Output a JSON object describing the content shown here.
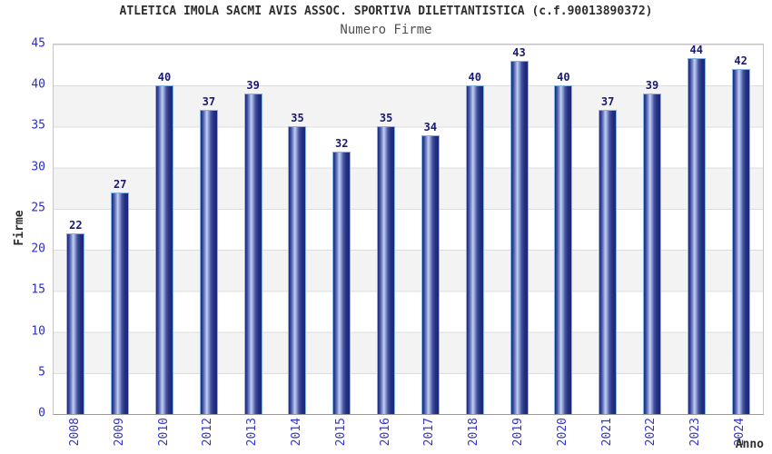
{
  "header": {
    "title": "ATLETICA IMOLA SACMI AVIS ASSOC. SPORTIVA DILETTANTISTICA (c.f.90013890372)",
    "subtitle": "Numero Firme"
  },
  "chart_data": {
    "type": "bar",
    "title": "ATLETICA IMOLA SACMI AVIS ASSOC. SPORTIVA DILETTANTISTICA (c.f.90013890372)",
    "subtitle": "Numero Firme",
    "categories": [
      "2008",
      "2009",
      "2010",
      "2012",
      "2013",
      "2014",
      "2015",
      "2016",
      "2017",
      "2018",
      "2019",
      "2020",
      "2021",
      "2022",
      "2023",
      "2024"
    ],
    "values": [
      22,
      27,
      40,
      37,
      39,
      35,
      32,
      35,
      34,
      40,
      43,
      40,
      37,
      39,
      44,
      42
    ],
    "xlabel": "Anno",
    "ylabel": "Firme",
    "ylim": [
      0,
      45
    ],
    "yticks": [
      0,
      5,
      10,
      15,
      20,
      25,
      30,
      35,
      40,
      45
    ],
    "grid": true,
    "legend": false,
    "band_fill": "alternating",
    "colors": {
      "bar_dark": "#1b2878",
      "bar_highlight": "#c6d0f2",
      "bar_border": "#84b2e4",
      "value_label": "#1a1a70",
      "axis_tick_label": "#2b2bd0",
      "category_label": "#3434cc",
      "title": "#2e2e2e",
      "subtitle": "#4f4f4f",
      "band_gray": "#f3f3f3",
      "gridline": "#dcdcdc"
    }
  }
}
